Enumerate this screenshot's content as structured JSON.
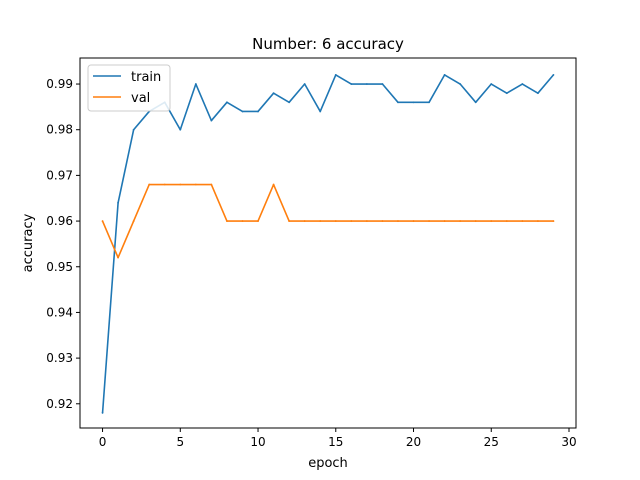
{
  "chart_data": {
    "type": "line",
    "title": "Number: 6 accuracy",
    "xlabel": "epoch",
    "ylabel": "accuracy",
    "xlim": [
      -1.45,
      30.45
    ],
    "ylim": [
      0.9147,
      0.9957
    ],
    "xticks": [
      0,
      5,
      10,
      15,
      20,
      25,
      30
    ],
    "yticks": [
      0.92,
      0.93,
      0.94,
      0.95,
      0.96,
      0.97,
      0.98,
      0.99
    ],
    "grid": false,
    "legend_position": "top-left",
    "x": [
      0,
      1,
      2,
      3,
      4,
      5,
      6,
      7,
      8,
      9,
      10,
      11,
      12,
      13,
      14,
      15,
      16,
      17,
      18,
      19,
      20,
      21,
      22,
      23,
      24,
      25,
      26,
      27,
      28,
      29
    ],
    "series": [
      {
        "name": "train",
        "color": "#1f77b4",
        "values": [
          0.918,
          0.964,
          0.98,
          0.984,
          0.986,
          0.98,
          0.99,
          0.982,
          0.986,
          0.984,
          0.984,
          0.988,
          0.986,
          0.99,
          0.984,
          0.992,
          0.99,
          0.99,
          0.99,
          0.986,
          0.986,
          0.986,
          0.992,
          0.99,
          0.986,
          0.99,
          0.988,
          0.99,
          0.988,
          0.992
        ]
      },
      {
        "name": "val",
        "color": "#ff7f0e",
        "values": [
          0.96,
          0.952,
          0.96,
          0.968,
          0.968,
          0.968,
          0.968,
          0.968,
          0.96,
          0.96,
          0.96,
          0.968,
          0.96,
          0.96,
          0.96,
          0.96,
          0.96,
          0.96,
          0.96,
          0.96,
          0.96,
          0.96,
          0.96,
          0.96,
          0.96,
          0.96,
          0.96,
          0.96,
          0.96,
          0.96
        ]
      }
    ]
  }
}
